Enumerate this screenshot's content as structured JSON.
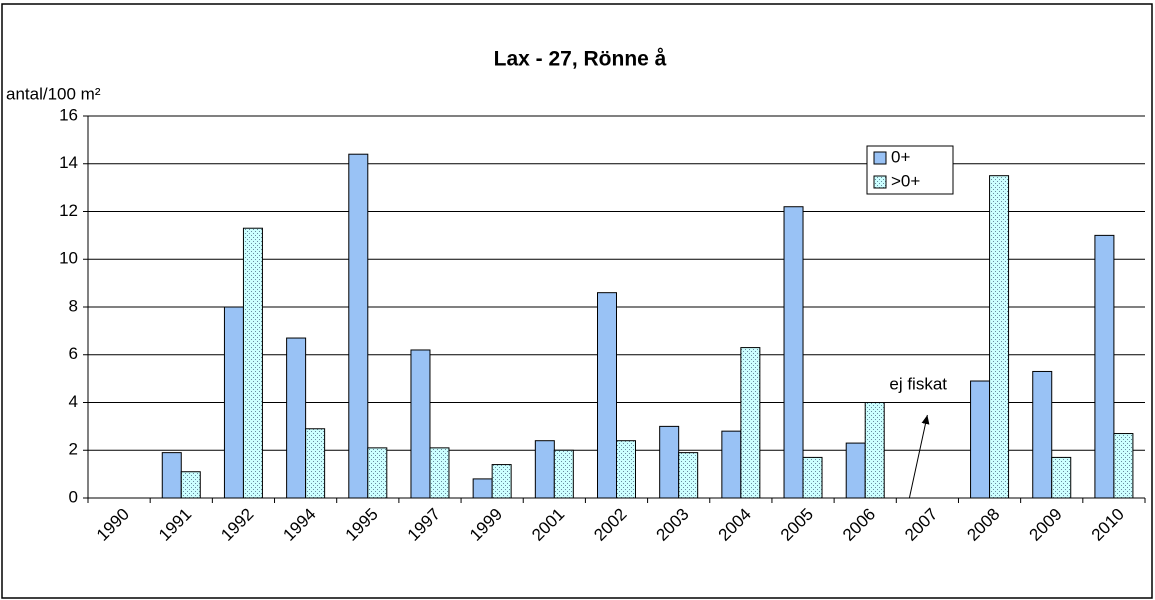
{
  "chart_data": {
    "type": "bar",
    "title": "Lax - 27, Rönne å",
    "y_label": "antal/100 m²",
    "categories": [
      "1990",
      "1991",
      "1992",
      "1994",
      "1995",
      "1997",
      "1999",
      "2001",
      "2002",
      "2003",
      "2004",
      "2005",
      "2006",
      "2007",
      "2008",
      "2009",
      "2010"
    ],
    "series": [
      {
        "name": "0+",
        "color": "#99c2f5",
        "values": [
          null,
          1.9,
          8.0,
          6.7,
          14.4,
          6.2,
          0.8,
          2.4,
          8.6,
          3.0,
          2.8,
          12.2,
          2.3,
          null,
          4.9,
          5.3,
          11.0
        ]
      },
      {
        "name": ">0+",
        "color": "#ccffff",
        "pattern": "dots",
        "values": [
          null,
          1.1,
          11.3,
          2.9,
          2.1,
          2.1,
          1.4,
          2.0,
          2.4,
          1.9,
          6.3,
          1.7,
          4.0,
          null,
          13.5,
          1.7,
          2.7
        ]
      }
    ],
    "ylim": [
      0,
      16
    ],
    "yticks": [
      0,
      2,
      4,
      6,
      8,
      10,
      12,
      14,
      16
    ],
    "grid": true,
    "legend": "upper right",
    "annotations": [
      {
        "text": "ej fiskat",
        "category": 13
      }
    ]
  }
}
